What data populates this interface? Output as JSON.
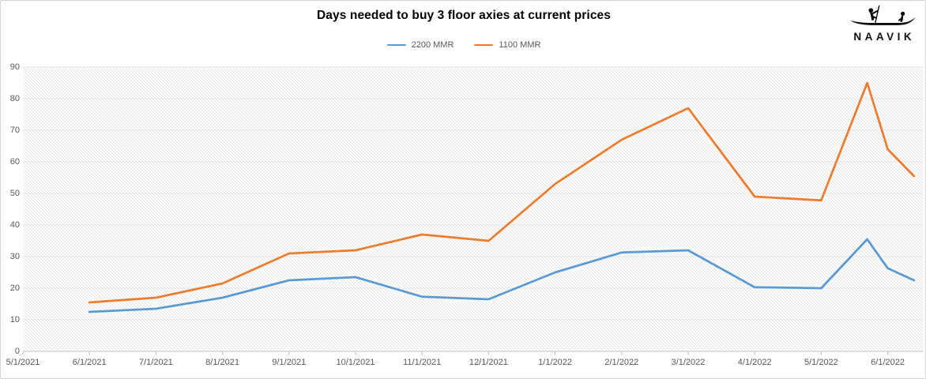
{
  "header": {
    "title": "Days needed to buy 3 floor axies at current prices",
    "logo_text": "NAAVIK"
  },
  "legend": [
    {
      "label": "2200 MMR",
      "color": "#5B9BD5"
    },
    {
      "label": "1100 MMR",
      "color": "#ED7D31"
    }
  ],
  "colors": {
    "series_blue": "#5B9BD5",
    "series_orange": "#ED7D31",
    "axis_text": "#595959",
    "gridline": "#e4e4e4",
    "axis_line": "#bfbfbf",
    "hatch": "#d9d9d9"
  },
  "chart_data": {
    "type": "line",
    "title": "Days needed to buy 3 floor axies at current prices",
    "xlabel": "",
    "ylabel": "",
    "legend_position": "top-center",
    "grid": "horizontal-only",
    "plot_background": "diagonal-hatch",
    "x_axis": {
      "labels": [
        "5/1/2021",
        "6/1/2021",
        "7/1/2021",
        "8/1/2021",
        "9/1/2021",
        "10/1/2021",
        "11/1/2021",
        "12/1/2021",
        "1/1/2022",
        "2/1/2022",
        "3/1/2022",
        "4/1/2022",
        "5/1/2022",
        "6/1/2022"
      ]
    },
    "y_axis": {
      "min": 0,
      "max": 90,
      "step": 10,
      "ticks": [
        0,
        10,
        20,
        30,
        40,
        50,
        60,
        70,
        80,
        90
      ]
    },
    "series": [
      {
        "name": "2200 MMR",
        "color": "#5B9BD5",
        "points": [
          {
            "date": "6/1/2021",
            "value": 12.5
          },
          {
            "date": "7/1/2021",
            "value": 13.5
          },
          {
            "date": "8/1/2021",
            "value": 17
          },
          {
            "date": "9/1/2021",
            "value": 22.5
          },
          {
            "date": "10/1/2021",
            "value": 23.5
          },
          {
            "date": "11/1/2021",
            "value": 17.3
          },
          {
            "date": "12/1/2021",
            "value": 16.5
          },
          {
            "date": "1/1/2022",
            "value": 25
          },
          {
            "date": "2/1/2022",
            "value": 31.3
          },
          {
            "date": "3/1/2022",
            "value": 32
          },
          {
            "date": "4/1/2022",
            "value": 20.3
          },
          {
            "date": "5/1/2022",
            "value": 20
          },
          {
            "date": "5/22/2022",
            "value": 35.5
          },
          {
            "date": "6/1/2022",
            "value": 26.3
          },
          {
            "date": "6/13/2022",
            "value": 22.5
          }
        ]
      },
      {
        "name": "1100 MMR",
        "color": "#ED7D31",
        "points": [
          {
            "date": "6/1/2021",
            "value": 15.5
          },
          {
            "date": "7/1/2021",
            "value": 17
          },
          {
            "date": "8/1/2021",
            "value": 21.5
          },
          {
            "date": "9/1/2021",
            "value": 31
          },
          {
            "date": "10/1/2021",
            "value": 32
          },
          {
            "date": "11/1/2021",
            "value": 37
          },
          {
            "date": "12/1/2021",
            "value": 35
          },
          {
            "date": "1/1/2022",
            "value": 53
          },
          {
            "date": "2/1/2022",
            "value": 67
          },
          {
            "date": "3/1/2022",
            "value": 77
          },
          {
            "date": "4/1/2022",
            "value": 49
          },
          {
            "date": "5/1/2022",
            "value": 47.8
          },
          {
            "date": "5/22/2022",
            "value": 85
          },
          {
            "date": "6/1/2022",
            "value": 64
          },
          {
            "date": "6/13/2022",
            "value": 55.5
          }
        ]
      }
    ]
  }
}
